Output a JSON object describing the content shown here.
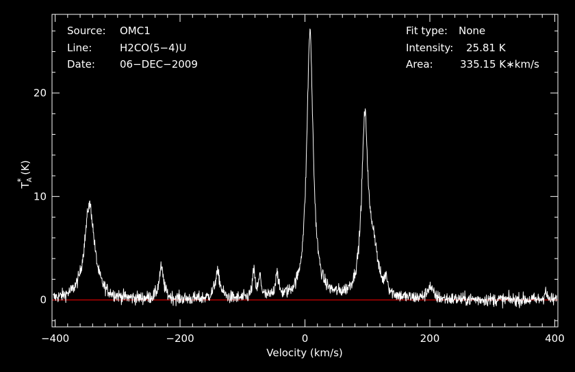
{
  "chart_data": {
    "type": "line",
    "xlabel": "Velocity (km/s)",
    "ylabel_main": "T",
    "ylabel_sub": "A",
    "ylabel_sup": "*",
    "ylabel_unit": " (K)",
    "xlim": [
      -405,
      405
    ],
    "ylim": [
      -2.6,
      27.6
    ],
    "x_ticks": [
      -400,
      -200,
      0,
      200,
      400
    ],
    "x_tick_labels": [
      "−400",
      "−200",
      "0",
      "200",
      "400"
    ],
    "y_ticks": [
      0,
      10,
      20
    ],
    "y_tick_labels": [
      "0",
      "10",
      "20"
    ],
    "x_minor_step": 20,
    "y_minor_step": 2,
    "background_color": "#000000",
    "axis_color": "#ffffff",
    "line_color": "#ffffff",
    "baseline_color": "#cc0000",
    "baseline_value": 0,
    "info_left": [
      {
        "label": "Source:",
        "value": "OMC1"
      },
      {
        "label": "Line:",
        "value": "H2CO(5−4)U"
      },
      {
        "label": "Date:",
        "value": "06−DEC−2009"
      }
    ],
    "info_right": [
      {
        "label": "Fit type:",
        "value": "None"
      },
      {
        "label": "Intensity:",
        "value": "25.81 K"
      },
      {
        "label": "Area:",
        "value": "335.15 K∗km/s"
      }
    ],
    "features": [
      {
        "x": -345,
        "peak": 9.2,
        "sigma": 11
      },
      {
        "x": -230,
        "peak": 3.0,
        "sigma": 5
      },
      {
        "x": -140,
        "peak": 2.5,
        "sigma": 6
      },
      {
        "x": -82,
        "peak": 2.5,
        "sigma": 3
      },
      {
        "x": -72,
        "peak": 2.0,
        "sigma": 3
      },
      {
        "x": -45,
        "peak": 2.5,
        "sigma": 3
      },
      {
        "x": 8,
        "peak": 25.8,
        "sigma": 7
      },
      {
        "x": 96,
        "peak": 17.0,
        "sigma": 7
      },
      {
        "x": 110,
        "peak": 4.0,
        "sigma": 9
      },
      {
        "x": 130,
        "peak": 1.5,
        "sigma": 3
      },
      {
        "x": 200,
        "peak": 1.2,
        "sigma": 6
      },
      {
        "x": 385,
        "peak": 1.0,
        "sigma": 2
      }
    ],
    "noise_rms": 0.45
  }
}
